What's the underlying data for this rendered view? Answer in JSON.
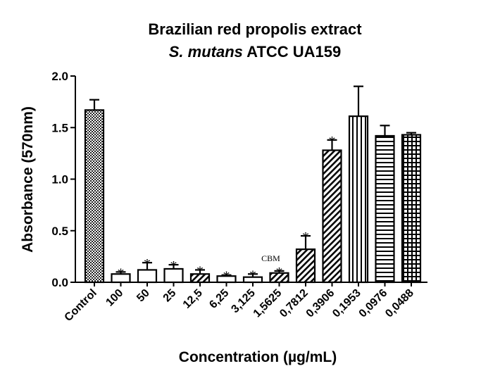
{
  "chart_data": {
    "type": "bar",
    "title": "Brazilian red propolis extract",
    "subtitle_italic": "S. mutans",
    "subtitle_rest": " ATCC UA159",
    "xlabel": "Concentration (µg/mL)",
    "ylabel": "Absorbance (570nm)",
    "ylim": [
      0,
      2.0
    ],
    "yticks": [
      "0.0",
      "0.5",
      "1.0",
      "1.5",
      "2.0"
    ],
    "grid": false,
    "categories": [
      "Control",
      "100",
      "50",
      "25",
      "12,5",
      "6,25",
      "3,125",
      "1,5625",
      "0,7812",
      "0,3906",
      "0,1953",
      "0,0976",
      "0,0488"
    ],
    "values": [
      1.67,
      0.08,
      0.12,
      0.13,
      0.08,
      0.06,
      0.05,
      0.09,
      0.32,
      1.28,
      1.61,
      1.42,
      1.43
    ],
    "errors": [
      0.1,
      0.02,
      0.07,
      0.04,
      0.04,
      0.01,
      0.03,
      0.02,
      0.13,
      0.1,
      0.29,
      0.1,
      0.02
    ],
    "significance": [
      "",
      "*",
      "*",
      "*",
      "*",
      "*",
      "*",
      "*",
      "*",
      "*",
      "",
      "",
      ""
    ],
    "patterns": [
      "checker",
      "open",
      "open",
      "open",
      "diagonal",
      "open",
      "open",
      "diagonal",
      "diagonal",
      "diagonal",
      "vertical",
      "horizontal",
      "grid"
    ],
    "annotations": [
      {
        "category": "1,5625",
        "text": "CBM"
      }
    ]
  }
}
